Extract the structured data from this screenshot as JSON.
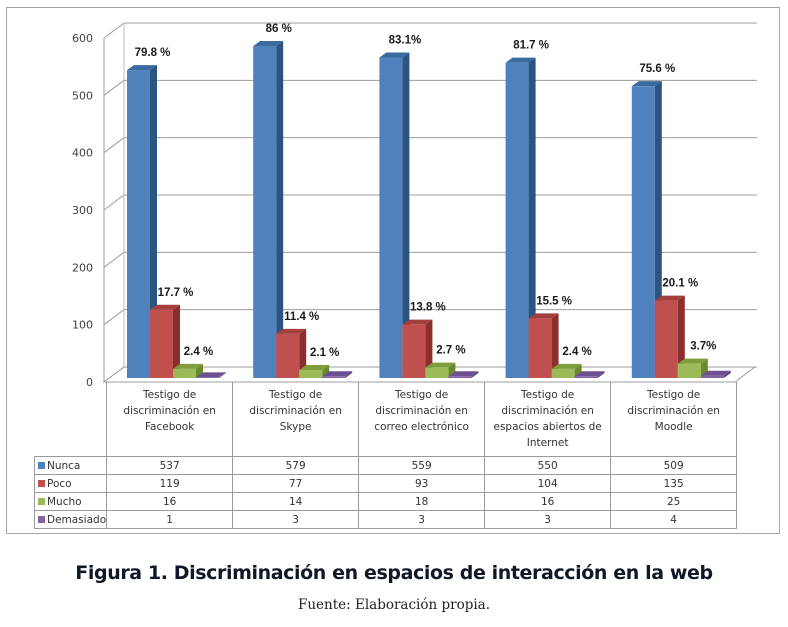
{
  "chart_data": {
    "type": "bar",
    "style": "3d-clustered-column-with-data-table",
    "title": "",
    "xlabel": "",
    "ylabel": "",
    "ylim": [
      0,
      600
    ],
    "yticks": [
      0,
      100,
      200,
      300,
      400,
      500,
      600
    ],
    "grid": true,
    "legend_position": "data-table-left",
    "categories": [
      "Testigo de discriminación en Facebook",
      "Testigo de discriminación en Skype",
      "Testigo de discriminación en correo electrónico",
      "Testigo de discriminación en espacios abiertos de Internet",
      "Testigo de discriminación en Moodle"
    ],
    "category_lines": [
      [
        "Testigo de",
        "discriminación en",
        "Facebook"
      ],
      [
        "Testigo de",
        "discriminación en",
        "Skype"
      ],
      [
        "Testigo de",
        "discriminación en",
        "correo electrónico"
      ],
      [
        "Testigo de",
        "discriminación en",
        "espacios abiertos de",
        "Internet"
      ],
      [
        "Testigo de",
        "discriminación en",
        "Moodle"
      ]
    ],
    "series": [
      {
        "name": "Nunca",
        "color": "#4f81bd",
        "side_color": "#2c5481",
        "top_color": "#3a6aa0",
        "values": [
          537,
          579,
          559,
          550,
          509
        ],
        "labels": [
          "79.8 %",
          "86 %",
          "83.1%",
          "81.7 %",
          "75.6 %"
        ]
      },
      {
        "name": "Poco",
        "color": "#c0504d",
        "side_color": "#8a2f2d",
        "top_color": "#a33f3c",
        "values": [
          119,
          77,
          93,
          104,
          135
        ],
        "labels": [
          "17.7 %",
          "11.4 %",
          "13.8 %",
          "15.5 %",
          "20.1 %"
        ]
      },
      {
        "name": "Mucho",
        "color": "#9bbb59",
        "side_color": "#6b8a2e",
        "top_color": "#7e9e3e",
        "values": [
          16,
          14,
          18,
          16,
          25
        ],
        "labels": [
          "2.4 %",
          "2.1 %",
          "2.7 %",
          "2.4 %",
          "3.7%"
        ]
      },
      {
        "name": "Demasiado",
        "color": "#8064a2",
        "side_color": "#5a4178",
        "top_color": "#6c5190",
        "values": [
          1,
          3,
          3,
          3,
          4
        ],
        "labels": [
          "",
          "",
          "",
          "",
          ""
        ]
      }
    ]
  },
  "caption": {
    "title": "Figura 1. Discriminación en espacios de interacción en la web",
    "source": "Fuente: Elaboración propia."
  }
}
